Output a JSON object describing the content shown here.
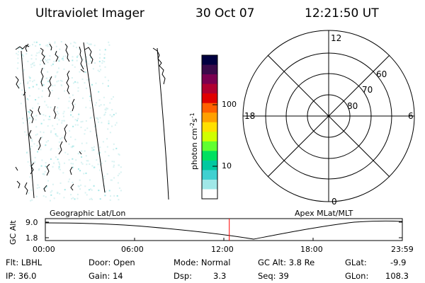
{
  "header": {
    "title": "Ultraviolet Imager",
    "date": "30 Oct 07",
    "time": "12:21:50 UT"
  },
  "colorbar": {
    "unit_main": "photon cm",
    "unit_sup1": "-2",
    "unit_s": "s",
    "unit_sup2": "-1",
    "ticks": [
      "100",
      "10"
    ],
    "colors": [
      "#000040",
      "#3a0a4a",
      "#7a0050",
      "#b00030",
      "#e00000",
      "#ff6000",
      "#ffa000",
      "#ffe000",
      "#d0ff00",
      "#60ff30",
      "#00e060",
      "#00c8a0",
      "#40d0d0",
      "#a0e8e8",
      "#ffffff"
    ]
  },
  "polar": {
    "mlt_labels": {
      "top": "12",
      "left": "18",
      "right": "6",
      "bottom": "0"
    },
    "lat_labels": [
      "60",
      "70",
      "80"
    ]
  },
  "timeline": {
    "ylabel": "GC Alt",
    "y_ticks": [
      "9.0",
      "1.8"
    ],
    "left_title": "Geographic Lat/Lon",
    "right_title": "Apex MLat/MLT",
    "x_ticks": [
      "00:00",
      "06:00",
      "12:00",
      "18:00",
      "23:59"
    ],
    "current_time_fraction": 0.5152,
    "marker_color": "#ff0000"
  },
  "status": {
    "filter": "Flt: LBHL",
    "ip": "IP: 36.0",
    "door": "Door: Open",
    "gain": "Gain: 14",
    "mode": "Mode: Normal",
    "dsp_label": "Dsp:",
    "dsp_value": "3.3",
    "gc_alt": "GC Alt: 3.8 Re",
    "seq": "Seq: 39",
    "glat_label": "GLat:",
    "glat_value": "-9.9",
    "glon_label": "GLon:",
    "glon_value": "108.3"
  }
}
